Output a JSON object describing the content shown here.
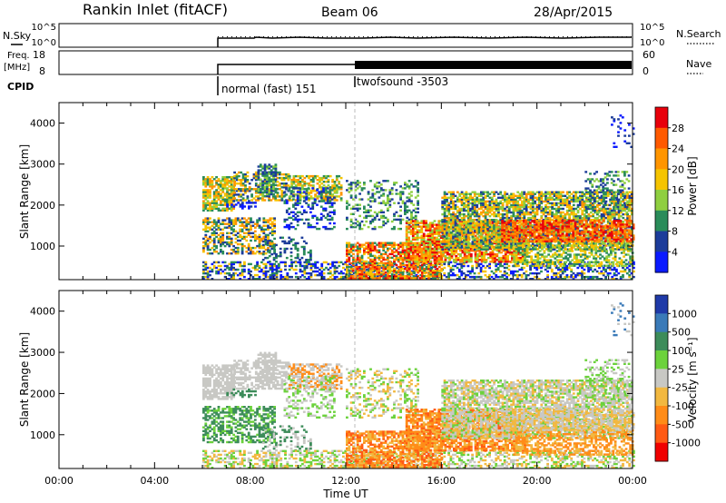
{
  "header": {
    "station": "Rankin Inlet (fitACF)",
    "beam": "Beam 06",
    "date": "28/Apr/2015"
  },
  "strip_panels": {
    "nsky_label": "N.Sky",
    "nsky_ticks": [
      "10^5",
      "10^0"
    ],
    "nsearch_label": "N.Search",
    "nsearch_ticks": [
      "10^5",
      "10^0"
    ],
    "freq_label": "Freq.",
    "freq_unit": "[MHz]",
    "freq_ticks": [
      "18",
      "8"
    ],
    "nave_label": "Nave",
    "nave_ticks": [
      "60",
      "0"
    ],
    "cpid_label": "CPID",
    "cpid_segments": [
      {
        "name": "normal (fast) 151",
        "start": 6.0
      },
      {
        "name": "twofsound -3503",
        "start": 12.0
      }
    ]
  },
  "chart_data": [
    {
      "type": "heatmap",
      "panel": "power",
      "ylabel": "Slant Range [km]",
      "yticks": [
        "4000",
        "3000",
        "2000",
        "1000"
      ],
      "ylim": [
        180,
        4500
      ],
      "xlim": [
        0,
        24
      ],
      "colorbar": {
        "label": "Power [dB]",
        "ticks": [
          "28",
          "24",
          "20",
          "16",
          "12",
          "8",
          "4"
        ],
        "colors": [
          "#e8000b",
          "#ff5a00",
          "#ff9500",
          "#f5c400",
          "#8fcf40",
          "#2a8c5a",
          "#1c3c9a",
          "#0a1aff"
        ]
      }
    },
    {
      "type": "heatmap",
      "panel": "velocity",
      "ylabel": "Slant Range [km]",
      "yticks": [
        "4000",
        "3000",
        "2000",
        "1000"
      ],
      "ylim": [
        180,
        4500
      ],
      "xlim": [
        0,
        24
      ],
      "xlabel": "Time UT",
      "xticks": [
        "00:00",
        "04:00",
        "08:00",
        "12:00",
        "16:00",
        "20:00",
        "00:00"
      ],
      "colorbar": {
        "label": "Velocity [m s⁻¹]",
        "ticks": [
          "1000",
          "500",
          "100",
          "25",
          "-25",
          "-100",
          "-500",
          "-1000"
        ],
        "colors": [
          "#1f3aa8",
          "#3a7ab8",
          "#3d8c5a",
          "#6cd23c",
          "#c8c8c4",
          "#f2b840",
          "#ff8c18",
          "#ff5a14",
          "#f00000"
        ]
      }
    }
  ]
}
